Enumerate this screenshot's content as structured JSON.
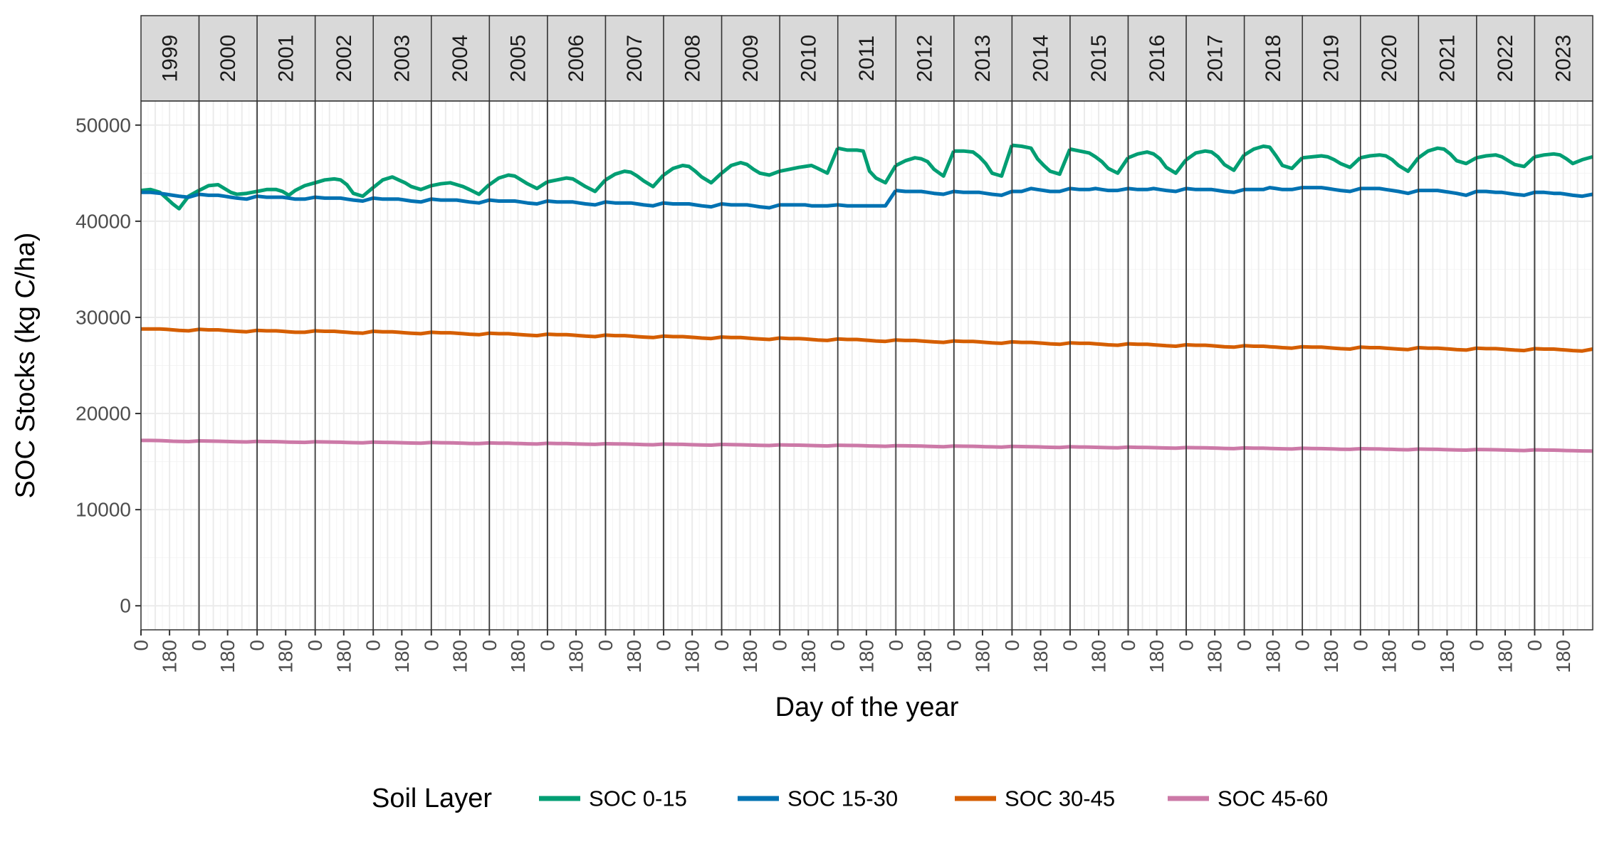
{
  "chart_data": {
    "type": "line",
    "facets": [
      "1999",
      "2000",
      "2001",
      "2002",
      "2003",
      "2004",
      "2005",
      "2006",
      "2007",
      "2008",
      "2009",
      "2010",
      "2011",
      "2012",
      "2013",
      "2014",
      "2015",
      "2016",
      "2017",
      "2018",
      "2019",
      "2020",
      "2021",
      "2022",
      "2023"
    ],
    "x_tick_values": [
      0,
      180
    ],
    "x_tick_labels": [
      "0",
      "180"
    ],
    "x_range": [
      0,
      366
    ],
    "xlabel": "Day of the year",
    "ylabel": "SOC Stocks (kg C/ha)",
    "ylim": [
      -2500,
      52500
    ],
    "y_tick_values": [
      0,
      10000,
      20000,
      30000,
      40000,
      50000
    ],
    "y_tick_labels": [
      "0",
      "10000",
      "20000",
      "30000",
      "40000",
      "50000"
    ],
    "grid": true,
    "legend": {
      "position": "bottom",
      "title": "Soil Layer"
    },
    "day_points": [
      0,
      60,
      120,
      160,
      200,
      240,
      300,
      365
    ],
    "series": [
      {
        "name": "SOC 0-15",
        "color": "#009E73",
        "by_year": [
          [
            43200,
            43300,
            43000,
            42400,
            41800,
            41300,
            42600,
            43200
          ],
          [
            43200,
            43700,
            43800,
            43400,
            43000,
            42800,
            42900,
            43100
          ],
          [
            43100,
            43300,
            43300,
            43100,
            42700,
            43200,
            43700,
            44000
          ],
          [
            44000,
            44300,
            44400,
            44300,
            43800,
            42900,
            42600,
            43500
          ],
          [
            43500,
            44300,
            44600,
            44300,
            44000,
            43600,
            43300,
            43700
          ],
          [
            43700,
            43900,
            44000,
            43800,
            43600,
            43300,
            42800,
            43800
          ],
          [
            43800,
            44500,
            44800,
            44700,
            44300,
            43900,
            43400,
            44100
          ],
          [
            44100,
            44300,
            44500,
            44400,
            44000,
            43600,
            43100,
            44300
          ],
          [
            44300,
            44900,
            45200,
            45100,
            44700,
            44200,
            43600,
            44800
          ],
          [
            44800,
            45500,
            45800,
            45700,
            45200,
            44600,
            44000,
            45000
          ],
          [
            45000,
            45800,
            46100,
            45900,
            45400,
            45000,
            44800,
            45200
          ],
          [
            45200,
            45400,
            45600,
            45700,
            45800,
            45500,
            45000,
            47600
          ],
          [
            47600,
            47400,
            47400,
            47300,
            45200,
            44500,
            44000,
            45800
          ],
          [
            45800,
            46300,
            46600,
            46500,
            46200,
            45400,
            44700,
            47300
          ],
          [
            47300,
            47300,
            47200,
            46700,
            46000,
            45000,
            44700,
            47900
          ],
          [
            47900,
            47800,
            47600,
            46500,
            45800,
            45200,
            44900,
            47500
          ],
          [
            47500,
            47300,
            47100,
            46700,
            46200,
            45500,
            45000,
            46600
          ],
          [
            46600,
            47000,
            47200,
            47000,
            46500,
            45600,
            45000,
            46400
          ],
          [
            46400,
            47100,
            47300,
            47200,
            46700,
            45900,
            45300,
            46900
          ],
          [
            46900,
            47500,
            47800,
            47700,
            46800,
            45800,
            45500,
            46600
          ],
          [
            46600,
            46700,
            46800,
            46700,
            46400,
            46000,
            45600,
            46600
          ],
          [
            46600,
            46800,
            46900,
            46800,
            46400,
            45800,
            45200,
            46600
          ],
          [
            46600,
            47300,
            47600,
            47500,
            47000,
            46300,
            46000,
            46600
          ],
          [
            46600,
            46800,
            46900,
            46700,
            46300,
            45900,
            45700,
            46700
          ],
          [
            46700,
            46900,
            47000,
            46900,
            46500,
            46000,
            46400,
            46700
          ]
        ]
      },
      {
        "name": "SOC 15-30",
        "color": "#0072B2",
        "by_year": [
          [
            43000,
            43000,
            42900,
            42800,
            42700,
            42600,
            42500,
            42800
          ],
          [
            42800,
            42700,
            42700,
            42600,
            42500,
            42400,
            42300,
            42600
          ],
          [
            42600,
            42500,
            42500,
            42500,
            42400,
            42300,
            42300,
            42500
          ],
          [
            42500,
            42400,
            42400,
            42400,
            42300,
            42200,
            42100,
            42400
          ],
          [
            42400,
            42300,
            42300,
            42300,
            42200,
            42100,
            42000,
            42300
          ],
          [
            42300,
            42200,
            42200,
            42200,
            42100,
            42000,
            41900,
            42200
          ],
          [
            42200,
            42100,
            42100,
            42100,
            42000,
            41900,
            41800,
            42100
          ],
          [
            42100,
            42000,
            42000,
            42000,
            41900,
            41800,
            41700,
            42000
          ],
          [
            42000,
            41900,
            41900,
            41900,
            41800,
            41700,
            41600,
            41900
          ],
          [
            41900,
            41800,
            41800,
            41800,
            41700,
            41600,
            41500,
            41800
          ],
          [
            41800,
            41700,
            41700,
            41700,
            41600,
            41500,
            41400,
            41700
          ],
          [
            41700,
            41700,
            41700,
            41700,
            41600,
            41600,
            41600,
            41700
          ],
          [
            41700,
            41600,
            41600,
            41600,
            41600,
            41600,
            41600,
            43200
          ],
          [
            43200,
            43100,
            43100,
            43100,
            43000,
            42900,
            42800,
            43100
          ],
          [
            43100,
            43000,
            43000,
            43000,
            42900,
            42800,
            42700,
            43100
          ],
          [
            43100,
            43100,
            43400,
            43300,
            43200,
            43100,
            43100,
            43400
          ],
          [
            43400,
            43300,
            43300,
            43400,
            43300,
            43200,
            43200,
            43400
          ],
          [
            43400,
            43300,
            43300,
            43400,
            43300,
            43200,
            43100,
            43400
          ],
          [
            43400,
            43300,
            43300,
            43300,
            43200,
            43100,
            43000,
            43300
          ],
          [
            43300,
            43300,
            43300,
            43500,
            43400,
            43300,
            43300,
            43500
          ],
          [
            43500,
            43500,
            43500,
            43400,
            43300,
            43200,
            43100,
            43400
          ],
          [
            43400,
            43400,
            43400,
            43300,
            43200,
            43100,
            42900,
            43200
          ],
          [
            43200,
            43200,
            43200,
            43100,
            43000,
            42900,
            42700,
            43100
          ],
          [
            43100,
            43100,
            43000,
            43000,
            42900,
            42800,
            42700,
            43000
          ],
          [
            43000,
            43000,
            42900,
            42900,
            42800,
            42700,
            42600,
            42800
          ]
        ]
      },
      {
        "name": "SOC 30-45",
        "color": "#D55E00",
        "by_year": [
          [
            28800,
            28800,
            28800,
            28750,
            28700,
            28650,
            28600,
            28750
          ],
          [
            28750,
            28700,
            28700,
            28650,
            28600,
            28550,
            28500,
            28650
          ],
          [
            28650,
            28600,
            28600,
            28550,
            28500,
            28450,
            28450,
            28600
          ],
          [
            28600,
            28550,
            28550,
            28500,
            28450,
            28400,
            28350,
            28550
          ],
          [
            28550,
            28500,
            28500,
            28450,
            28400,
            28350,
            28300,
            28450
          ],
          [
            28450,
            28400,
            28400,
            28350,
            28300,
            28250,
            28200,
            28350
          ],
          [
            28350,
            28300,
            28300,
            28250,
            28200,
            28150,
            28100,
            28250
          ],
          [
            28250,
            28200,
            28200,
            28150,
            28100,
            28050,
            28000,
            28150
          ],
          [
            28150,
            28100,
            28100,
            28050,
            28000,
            27950,
            27900,
            28050
          ],
          [
            28050,
            28000,
            28000,
            27950,
            27900,
            27850,
            27800,
            27950
          ],
          [
            27950,
            27900,
            27900,
            27850,
            27800,
            27750,
            27700,
            27850
          ],
          [
            27850,
            27800,
            27800,
            27750,
            27700,
            27650,
            27600,
            27750
          ],
          [
            27750,
            27700,
            27700,
            27650,
            27600,
            27550,
            27500,
            27650
          ],
          [
            27650,
            27600,
            27600,
            27550,
            27500,
            27450,
            27400,
            27550
          ],
          [
            27550,
            27500,
            27500,
            27450,
            27400,
            27350,
            27300,
            27450
          ],
          [
            27450,
            27400,
            27400,
            27350,
            27300,
            27250,
            27200,
            27350
          ],
          [
            27350,
            27300,
            27300,
            27250,
            27200,
            27150,
            27100,
            27250
          ],
          [
            27250,
            27200,
            27200,
            27150,
            27100,
            27050,
            27000,
            27150
          ],
          [
            27150,
            27100,
            27100,
            27050,
            27000,
            26950,
            26900,
            27050
          ],
          [
            27050,
            27000,
            27000,
            26950,
            26900,
            26850,
            26800,
            26950
          ],
          [
            26950,
            26900,
            26900,
            26850,
            26800,
            26750,
            26700,
            26900
          ],
          [
            26900,
            26850,
            26850,
            26800,
            26750,
            26700,
            26650,
            26850
          ],
          [
            26850,
            26800,
            26800,
            26750,
            26700,
            26650,
            26600,
            26800
          ],
          [
            26800,
            26750,
            26750,
            26700,
            26650,
            26600,
            26550,
            26750
          ],
          [
            26750,
            26700,
            26700,
            26650,
            26600,
            26550,
            26500,
            26700
          ]
        ]
      },
      {
        "name": "SOC 45-60",
        "color": "#CC79A7",
        "by_year": [
          [
            17200,
            17200,
            17180,
            17150,
            17120,
            17100,
            17080,
            17150
          ],
          [
            17150,
            17130,
            17120,
            17100,
            17080,
            17060,
            17040,
            17100
          ],
          [
            17100,
            17080,
            17070,
            17050,
            17030,
            17010,
            17000,
            17060
          ],
          [
            17060,
            17040,
            17030,
            17010,
            16990,
            16970,
            16950,
            17020
          ],
          [
            17020,
            17000,
            16990,
            16970,
            16950,
            16930,
            16910,
            16980
          ],
          [
            16980,
            16960,
            16950,
            16930,
            16910,
            16890,
            16870,
            16940
          ],
          [
            16940,
            16920,
            16910,
            16890,
            16870,
            16850,
            16830,
            16900
          ],
          [
            16900,
            16880,
            16870,
            16850,
            16830,
            16810,
            16790,
            16860
          ],
          [
            16860,
            16840,
            16830,
            16810,
            16790,
            16770,
            16750,
            16820
          ],
          [
            16820,
            16800,
            16790,
            16770,
            16750,
            16730,
            16710,
            16780
          ],
          [
            16780,
            16760,
            16750,
            16730,
            16710,
            16690,
            16670,
            16740
          ],
          [
            16740,
            16720,
            16710,
            16690,
            16670,
            16650,
            16630,
            16700
          ],
          [
            16700,
            16680,
            16670,
            16650,
            16630,
            16610,
            16590,
            16660
          ],
          [
            16660,
            16640,
            16630,
            16610,
            16590,
            16570,
            16550,
            16620
          ],
          [
            16620,
            16600,
            16590,
            16570,
            16550,
            16530,
            16510,
            16580
          ],
          [
            16580,
            16560,
            16550,
            16530,
            16510,
            16490,
            16470,
            16540
          ],
          [
            16540,
            16520,
            16510,
            16490,
            16470,
            16450,
            16430,
            16500
          ],
          [
            16500,
            16480,
            16470,
            16450,
            16430,
            16410,
            16390,
            16460
          ],
          [
            16460,
            16440,
            16430,
            16410,
            16390,
            16370,
            16350,
            16420
          ],
          [
            16420,
            16400,
            16390,
            16370,
            16350,
            16330,
            16310,
            16380
          ],
          [
            16380,
            16360,
            16350,
            16330,
            16310,
            16290,
            16270,
            16340
          ],
          [
            16340,
            16320,
            16310,
            16290,
            16270,
            16250,
            16230,
            16300
          ],
          [
            16300,
            16280,
            16270,
            16250,
            16230,
            16210,
            16190,
            16260
          ],
          [
            16260,
            16240,
            16230,
            16210,
            16190,
            16170,
            16150,
            16220
          ],
          [
            16220,
            16200,
            16190,
            16170,
            16150,
            16130,
            16110,
            16100
          ]
        ]
      }
    ]
  }
}
